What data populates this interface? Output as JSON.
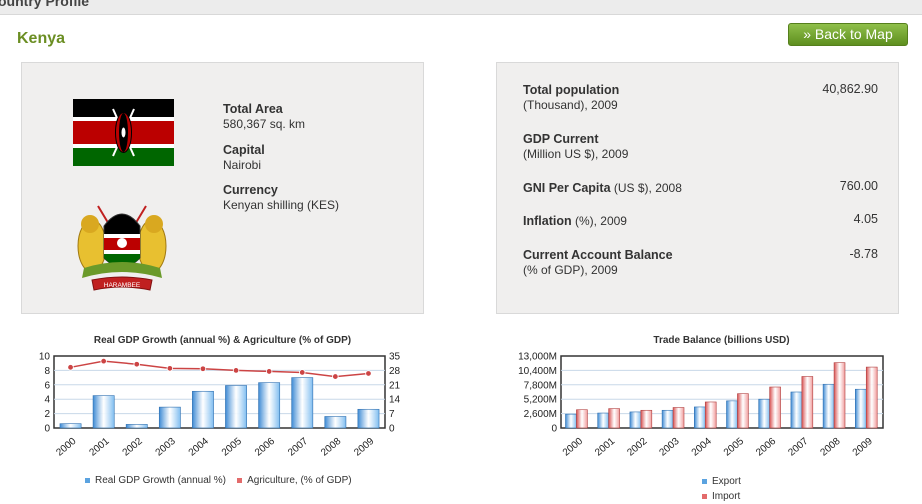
{
  "header": {
    "title": "ountry Profile"
  },
  "country": {
    "name": "Kenya"
  },
  "back_button": {
    "label": "» Back to Map"
  },
  "general": {
    "total_area_label": "Total Area",
    "total_area_value": "580,367 sq. km",
    "capital_label": "Capital",
    "capital_value": "Nairobi",
    "currency_label": "Currency",
    "currency_value": "Kenyan shilling (KES)",
    "coat_of_arms_text": "HARAMBEE"
  },
  "stats": [
    {
      "label": "Total population",
      "sub": "(Thousand), 2009",
      "value": "40,862.90"
    },
    {
      "label": "GDP Current",
      "sub": "(Million US $), 2009",
      "value": ""
    },
    {
      "label": "GNI Per Capita",
      "sub": "(US $), 2008",
      "value": "760.00"
    },
    {
      "label": "Inflation",
      "sub": "(%), 2009",
      "value": "4.05"
    },
    {
      "label": "Current Account Balance",
      "sub": "(% of GDP), 2009",
      "value": "-8.78"
    }
  ],
  "colors": {
    "accent": "#6b8e23",
    "bar_blue": "#5ba3e0",
    "bar_red": "#e36b6b",
    "line_red": "#cc4444"
  },
  "chart_data": [
    {
      "type": "bar",
      "title": "Real GDP Growth (annual %) & Agriculture (% of GDP)",
      "categories": [
        "2000",
        "2001",
        "2002",
        "2003",
        "2004",
        "2005",
        "2006",
        "2007",
        "2008",
        "2009"
      ],
      "y_ticks": [
        "10",
        "8",
        "6",
        "4",
        "2",
        "0"
      ],
      "y2_ticks": [
        "35",
        "28",
        "21",
        "14",
        "7",
        "0"
      ],
      "ylim": [
        0,
        10
      ],
      "y2lim": [
        0,
        35
      ],
      "series": [
        {
          "name": "Real GDP Growth (annual %)",
          "type": "bar",
          "values": [
            0.6,
            4.5,
            0.5,
            2.9,
            5.1,
            5.9,
            6.3,
            7.0,
            1.6,
            2.6
          ]
        },
        {
          "name": "Agriculture, (% of GDP)",
          "type": "line",
          "axis": "right",
          "values": [
            29.5,
            32.5,
            31,
            29,
            28.8,
            28,
            27.5,
            27,
            25,
            26.5
          ]
        }
      ]
    },
    {
      "type": "bar",
      "title": "Trade Balance (billions USD)",
      "categories": [
        "2000",
        "2001",
        "2002",
        "2003",
        "2004",
        "2005",
        "2006",
        "2007",
        "2008",
        "2009"
      ],
      "y_ticks": [
        "13,000M",
        "10,400M",
        "7,800M",
        "5,200M",
        "2,600M",
        "0"
      ],
      "ylim": [
        0,
        13000
      ],
      "series": [
        {
          "name": "Export",
          "values": [
            2500,
            2700,
            2900,
            3200,
            3800,
            4900,
            5200,
            6500,
            7900,
            7000
          ]
        },
        {
          "name": "Import",
          "values": [
            3300,
            3500,
            3200,
            3700,
            4700,
            6200,
            7400,
            9300,
            11800,
            11000
          ]
        }
      ]
    }
  ]
}
